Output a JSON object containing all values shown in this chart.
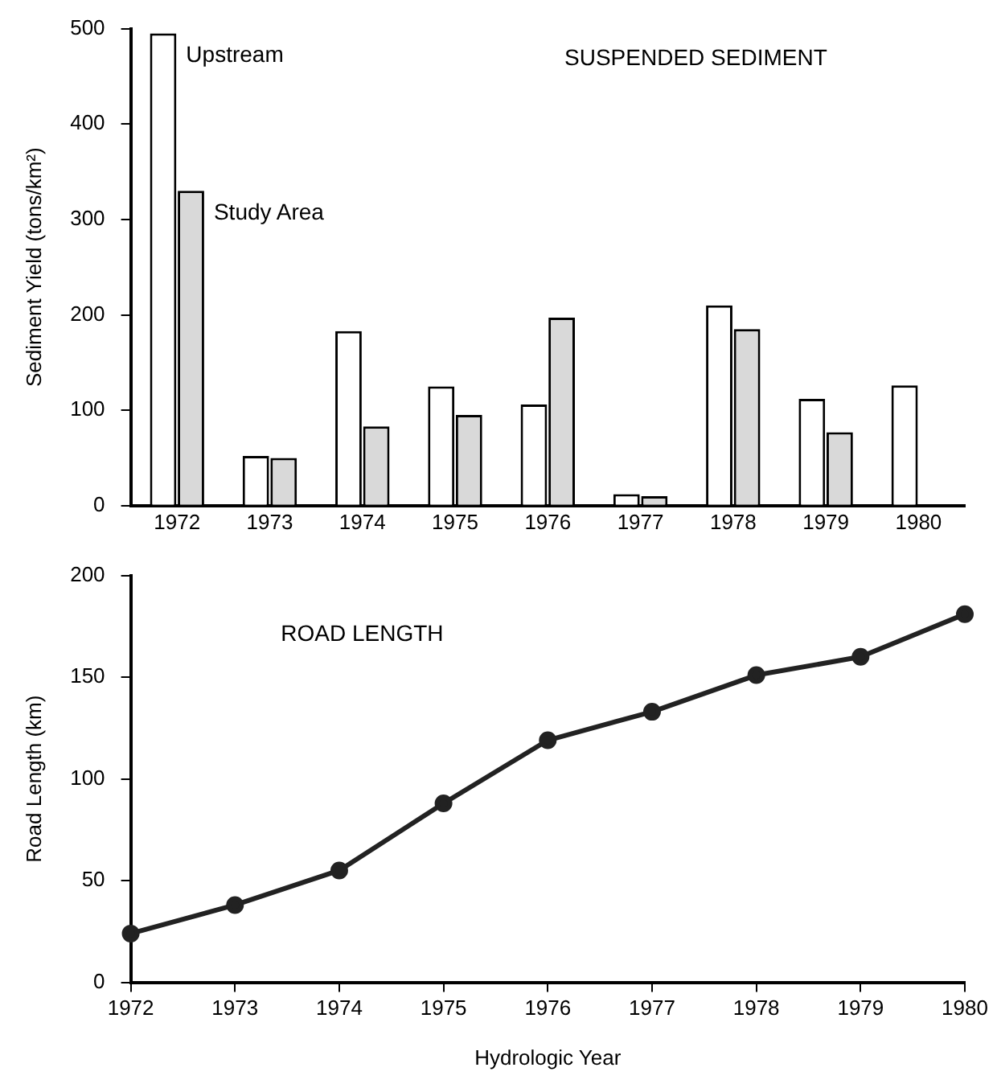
{
  "chart_data": [
    {
      "type": "bar",
      "title": "SUSPENDED SEDIMENT",
      "ylabel": "Sediment Yield (tons/km²)",
      "categories": [
        "1972",
        "1973",
        "1974",
        "1975",
        "1976",
        "1977",
        "1978",
        "1979",
        "1980"
      ],
      "series": [
        {
          "name": "Upstream",
          "color": "#ffffff",
          "values": [
            495,
            52,
            183,
            125,
            106,
            12,
            210,
            112,
            126
          ]
        },
        {
          "name": "Study Area",
          "color": "#d9d9d9",
          "values": [
            330,
            50,
            83,
            95,
            197,
            10,
            185,
            77,
            null
          ]
        }
      ],
      "ylim": [
        0,
        500
      ],
      "yticks": [
        0,
        100,
        200,
        300,
        400,
        500
      ],
      "grid": false,
      "legend": false
    },
    {
      "type": "line",
      "title": "ROAD LENGTH",
      "ylabel": "Road Length (km)",
      "xlabel": "Hydrologic Year",
      "categories": [
        "1972",
        "1973",
        "1974",
        "1975",
        "1976",
        "1977",
        "1978",
        "1979",
        "1980"
      ],
      "series": [
        {
          "color": "#222222",
          "values": [
            24,
            38,
            55,
            88,
            119,
            133,
            151,
            160,
            181
          ]
        }
      ],
      "ylim": [
        0,
        200
      ],
      "yticks": [
        0,
        50,
        100,
        150,
        200
      ],
      "grid": false,
      "legend": false,
      "marker": "circle",
      "line_style": "solid"
    }
  ]
}
